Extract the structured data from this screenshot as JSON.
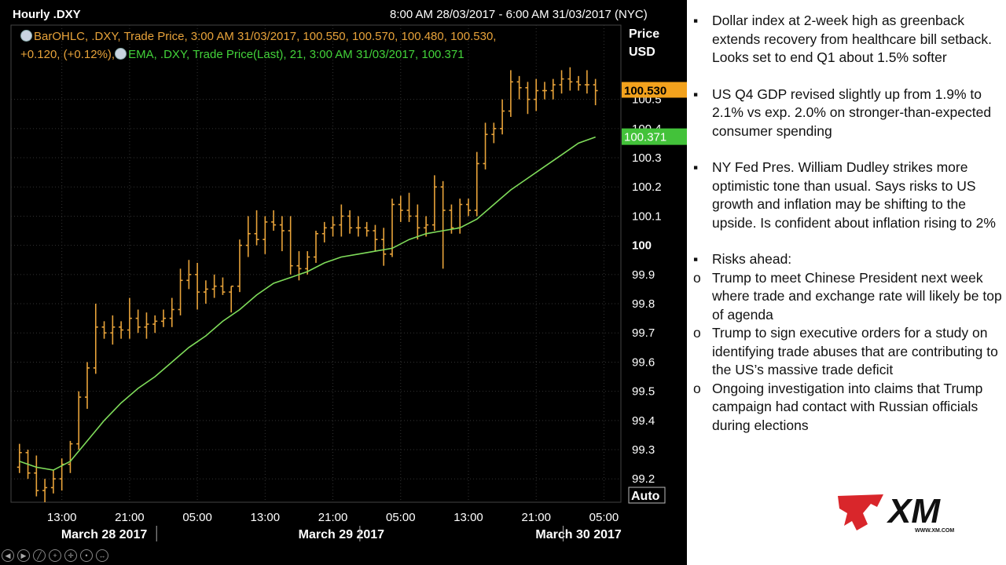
{
  "chart_header": {
    "title": "Hourly .DXY",
    "date_range": "8:00 AM 28/03/2017 - 6:00 AM 31/03/2017 (NYC)",
    "price_label": "Price",
    "currency_label": "USD",
    "auto_label": "Auto"
  },
  "legend": {
    "line1": "BarOHLC, .DXY, Trade Price, 3:00 AM 31/03/2017, 100.550, 100.570, 100.480, 100.530,",
    "line2a": "+0.120, (+0.12%),",
    "line2b": "EMA, .DXY, Trade Price(Last),  21, 3:00 AM 31/03/2017, 100.371"
  },
  "colors": {
    "background": "#000000",
    "bar": "#e8a33a",
    "ema": "#7fdc5a",
    "last_price_bg": "#f3a21d",
    "ema_price_bg": "#43c23a",
    "grid": "#333333",
    "axis_text": "#ffffff"
  },
  "chart_data": {
    "type": "line",
    "subtype": "ohlc_bar_with_ema",
    "title": "Hourly .DXY",
    "xlabel": "",
    "ylabel": "Price USD",
    "ylim": [
      99.12,
      100.62
    ],
    "grid": true,
    "y_ticks": [
      {
        "value": 99.2,
        "label": "99.2",
        "bold": false
      },
      {
        "value": 99.3,
        "label": "99.3",
        "bold": false
      },
      {
        "value": 99.4,
        "label": "99.4",
        "bold": false
      },
      {
        "value": 99.5,
        "label": "99.5",
        "bold": false
      },
      {
        "value": 99.6,
        "label": "99.6",
        "bold": false
      },
      {
        "value": 99.7,
        "label": "99.7",
        "bold": false
      },
      {
        "value": 99.8,
        "label": "99.8",
        "bold": false
      },
      {
        "value": 99.9,
        "label": "99.9",
        "bold": false
      },
      {
        "value": 100.0,
        "label": "100",
        "bold": true
      },
      {
        "value": 100.1,
        "label": "100.1",
        "bold": false
      },
      {
        "value": 100.2,
        "label": "100.2",
        "bold": false
      },
      {
        "value": 100.3,
        "label": "100.3",
        "bold": false
      },
      {
        "value": 100.4,
        "label": "100.4",
        "bold": false
      },
      {
        "value": 100.5,
        "label": "100.5",
        "bold": false
      }
    ],
    "x_ticks": [
      {
        "hour": 5,
        "label": "13:00"
      },
      {
        "hour": 13,
        "label": "21:00"
      },
      {
        "hour": 21,
        "label": "05:00"
      },
      {
        "hour": 29,
        "label": "13:00"
      },
      {
        "hour": 37,
        "label": "21:00"
      },
      {
        "hour": 45,
        "label": "05:00"
      },
      {
        "hour": 53,
        "label": "13:00"
      },
      {
        "hour": 61,
        "label": "21:00"
      },
      {
        "hour": 69,
        "label": "05:00"
      }
    ],
    "date_labels": [
      {
        "hour": 10,
        "label": "March 28 2017"
      },
      {
        "hour": 38,
        "label": "March 29 2017"
      },
      {
        "hour": 66,
        "label": "March 30 2017"
      }
    ],
    "day_separators": [
      16,
      40,
      64
    ],
    "last_price": {
      "value": 100.53,
      "label": "100.530"
    },
    "ema_last": {
      "value": 100.371,
      "label": "100.371"
    },
    "series": [
      {
        "name": "BarOHLC, .DXY",
        "kind": "ohlc",
        "data": [
          [
            0,
            99.24,
            99.32,
            99.22,
            99.29
          ],
          [
            1,
            99.29,
            99.3,
            99.2,
            99.22
          ],
          [
            2,
            99.22,
            99.28,
            99.14,
            99.16
          ],
          [
            3,
            99.16,
            99.2,
            99.12,
            99.17
          ],
          [
            4,
            99.17,
            99.23,
            99.15,
            99.2
          ],
          [
            5,
            99.2,
            99.27,
            99.16,
            99.25
          ],
          [
            6,
            99.25,
            99.33,
            99.22,
            99.32
          ],
          [
            7,
            99.32,
            99.5,
            99.3,
            99.48
          ],
          [
            8,
            99.48,
            99.6,
            99.44,
            99.58
          ],
          [
            9,
            99.58,
            99.8,
            99.56,
            99.72
          ],
          [
            10,
            99.72,
            99.74,
            99.68,
            99.7
          ],
          [
            11,
            99.7,
            99.76,
            99.66,
            99.72
          ],
          [
            12,
            99.72,
            99.74,
            99.68,
            99.71
          ],
          [
            13,
            99.71,
            99.82,
            99.68,
            99.75
          ],
          [
            14,
            99.75,
            99.78,
            99.7,
            99.72
          ],
          [
            15,
            99.72,
            99.77,
            99.68,
            99.73
          ],
          [
            16,
            99.73,
            99.76,
            99.7,
            99.74
          ],
          [
            17,
            99.74,
            99.78,
            99.72,
            99.75
          ],
          [
            18,
            99.75,
            99.82,
            99.72,
            99.78
          ],
          [
            19,
            99.78,
            99.92,
            99.76,
            99.88
          ],
          [
            20,
            99.88,
            99.95,
            99.85,
            99.9
          ],
          [
            21,
            99.9,
            99.94,
            99.78,
            99.84
          ],
          [
            22,
            99.84,
            99.88,
            99.8,
            99.85
          ],
          [
            23,
            99.85,
            99.9,
            99.82,
            99.86
          ],
          [
            24,
            99.86,
            99.89,
            99.83,
            99.84
          ],
          [
            25,
            99.84,
            99.86,
            99.77,
            99.86
          ],
          [
            26,
            99.86,
            100.02,
            99.84,
            100.0
          ],
          [
            27,
            100.0,
            100.1,
            99.96,
            100.04
          ],
          [
            28,
            100.04,
            100.12,
            100.0,
            100.02
          ],
          [
            29,
            100.02,
            100.1,
            99.97,
            100.08
          ],
          [
            30,
            100.08,
            100.12,
            100.05,
            100.07
          ],
          [
            31,
            100.07,
            100.1,
            99.98,
            100.05
          ],
          [
            32,
            100.05,
            100.1,
            99.9,
            99.93
          ],
          [
            33,
            99.93,
            99.98,
            99.88,
            99.92
          ],
          [
            34,
            99.92,
            99.98,
            99.9,
            99.96
          ],
          [
            35,
            99.96,
            100.05,
            99.94,
            100.04
          ],
          [
            36,
            100.04,
            100.08,
            100.01,
            100.06
          ],
          [
            37,
            100.06,
            100.1,
            100.03,
            100.07
          ],
          [
            38,
            100.07,
            100.14,
            100.03,
            100.1
          ],
          [
            39,
            100.1,
            100.12,
            100.04,
            100.06
          ],
          [
            40,
            100.06,
            100.1,
            100.03,
            100.06
          ],
          [
            41,
            100.06,
            100.08,
            100.03,
            100.05
          ],
          [
            42,
            100.05,
            100.07,
            99.98,
            100.02
          ],
          [
            43,
            100.02,
            100.06,
            99.93,
            99.97
          ],
          [
            44,
            99.97,
            100.16,
            99.96,
            100.14
          ],
          [
            45,
            100.14,
            100.17,
            100.08,
            100.12
          ],
          [
            46,
            100.12,
            100.18,
            100.08,
            100.1
          ],
          [
            47,
            100.1,
            100.14,
            100.02,
            100.06
          ],
          [
            48,
            100.06,
            100.1,
            100.03,
            100.07
          ],
          [
            49,
            100.07,
            100.24,
            100.05,
            100.2
          ],
          [
            50,
            100.2,
            100.22,
            99.92,
            100.12
          ],
          [
            51,
            100.12,
            100.14,
            100.04,
            100.06
          ],
          [
            52,
            100.06,
            100.16,
            100.04,
            100.14
          ],
          [
            53,
            100.14,
            100.16,
            100.1,
            100.12
          ],
          [
            54,
            100.12,
            100.32,
            100.1,
            100.28
          ],
          [
            55,
            100.28,
            100.42,
            100.26,
            100.38
          ],
          [
            56,
            100.38,
            100.42,
            100.35,
            100.4
          ],
          [
            57,
            100.4,
            100.5,
            100.38,
            100.46
          ],
          [
            58,
            100.46,
            100.6,
            100.44,
            100.56
          ],
          [
            59,
            100.56,
            100.58,
            100.5,
            100.54
          ],
          [
            60,
            100.54,
            100.56,
            100.45,
            100.5
          ],
          [
            61,
            100.5,
            100.57,
            100.46,
            100.53
          ],
          [
            62,
            100.53,
            100.56,
            100.5,
            100.53
          ],
          [
            63,
            100.53,
            100.57,
            100.5,
            100.55
          ],
          [
            64,
            100.55,
            100.6,
            100.52,
            100.57
          ],
          [
            65,
            100.57,
            100.61,
            100.53,
            100.56
          ],
          [
            66,
            100.56,
            100.58,
            100.53,
            100.55
          ],
          [
            67,
            100.55,
            100.6,
            100.52,
            100.55
          ],
          [
            68,
            100.55,
            100.57,
            100.48,
            100.53
          ]
        ]
      },
      {
        "name": "EMA, .DXY",
        "kind": "line",
        "x": [
          0,
          2,
          4,
          6,
          8,
          10,
          12,
          14,
          16,
          18,
          20,
          22,
          24,
          26,
          28,
          30,
          32,
          34,
          36,
          38,
          40,
          42,
          44,
          46,
          48,
          50,
          52,
          54,
          56,
          58,
          60,
          62,
          64,
          66,
          68
        ],
        "values": [
          99.26,
          99.24,
          99.23,
          99.26,
          99.33,
          99.4,
          99.46,
          99.51,
          99.55,
          99.6,
          99.65,
          99.69,
          99.74,
          99.78,
          99.83,
          99.87,
          99.89,
          99.91,
          99.94,
          99.96,
          99.97,
          99.98,
          99.99,
          100.02,
          100.04,
          100.05,
          100.06,
          100.09,
          100.14,
          100.19,
          100.23,
          100.27,
          100.31,
          100.35,
          100.371
        ]
      }
    ]
  },
  "news": {
    "items": [
      {
        "marker": "▪",
        "text": "Dollar index at 2-week high as greenback extends recovery from healthcare bill setback. Looks set to end Q1 about 1.5% softer"
      },
      {
        "marker": "▪",
        "text": "US Q4 GDP revised slightly up from 1.9% to 2.1% vs exp. 2.0% on stronger-than-expected consumer spending"
      },
      {
        "marker": "▪",
        "text": "NY Fed Pres. William Dudley strikes more optimistic tone than usual. Says risks to US growth and inflation may be shifting to the upside. Is confident about inflation rising to 2%"
      }
    ],
    "risks_marker": "▪",
    "risks_title": "Risks ahead:",
    "risks": [
      {
        "marker": "o",
        "text": "Trump to meet Chinese President next week where trade and exchange rate will likely be top of agenda"
      },
      {
        "marker": "o",
        "text": "Trump to sign executive orders for a study on identifying trade abuses that are contributing to the US’s massive trade deficit"
      },
      {
        "marker": "o",
        "text": "Ongoing investigation into claims that Trump campaign had contact with Russian officials during elections"
      }
    ]
  },
  "logo": {
    "text": "XM",
    "url_text": "WWW.XM.COM"
  }
}
